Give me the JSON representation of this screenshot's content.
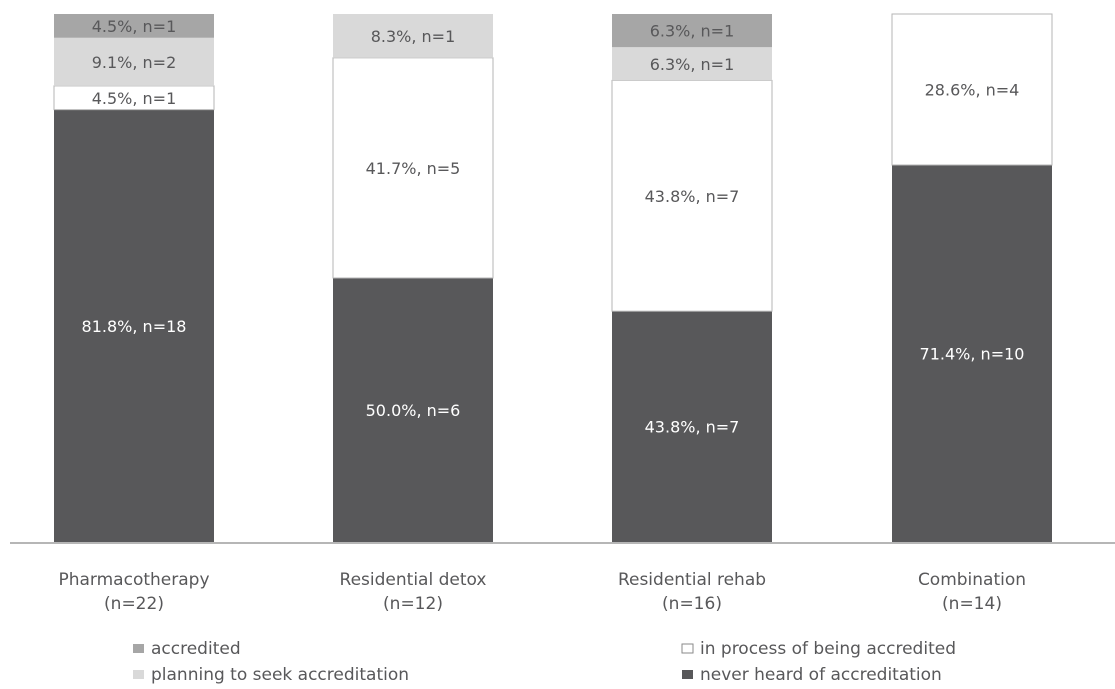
{
  "chart_data": {
    "type": "bar",
    "stacked": true,
    "percent": true,
    "categories": [
      "Pharmacotherapy",
      "Residential detox",
      "Residential rehab",
      "Combination"
    ],
    "category_n": [
      "(n=22)",
      "(n=12)",
      "(n=16)",
      "(n=14)"
    ],
    "series": [
      {
        "name": "never heard of accreditation",
        "color": "#58585a",
        "values": [
          81.8,
          50.0,
          43.8,
          71.4
        ],
        "labels": [
          "81.8%, n=18",
          "50.0%, n=6",
          "43.8%, n=7",
          "71.4%, n=10"
        ]
      },
      {
        "name": "in process of being accredited",
        "color": "#ffffff",
        "values": [
          4.5,
          41.7,
          43.8,
          28.6
        ],
        "labels": [
          "4.5%, n=1",
          "41.7%, n=5",
          "43.8%, n=7",
          "28.6%, n=4"
        ]
      },
      {
        "name": "planning to seek accreditation",
        "color": "#d9d9d9",
        "values": [
          9.1,
          8.3,
          6.3,
          0
        ],
        "labels": [
          "9.1%, n=2",
          "8.3%, n=1",
          "6.3%, n=1",
          ""
        ]
      },
      {
        "name": "accredited",
        "color": "#a6a6a6",
        "values": [
          4.5,
          0,
          6.3,
          0
        ],
        "labels": [
          "4.5%, n=1",
          "",
          "6.3%, n=1",
          ""
        ]
      }
    ],
    "legend": [
      {
        "series": "accredited",
        "color": "#a6a6a6"
      },
      {
        "series": "in process of being accredited",
        "color": "#ffffff"
      },
      {
        "series": "planning to seek accreditation",
        "color": "#d9d9d9"
      },
      {
        "series": "never heard of accreditation",
        "color": "#58585a"
      }
    ],
    "ylim": [
      0,
      100
    ],
    "grid": false,
    "legend_position": "bottom"
  }
}
